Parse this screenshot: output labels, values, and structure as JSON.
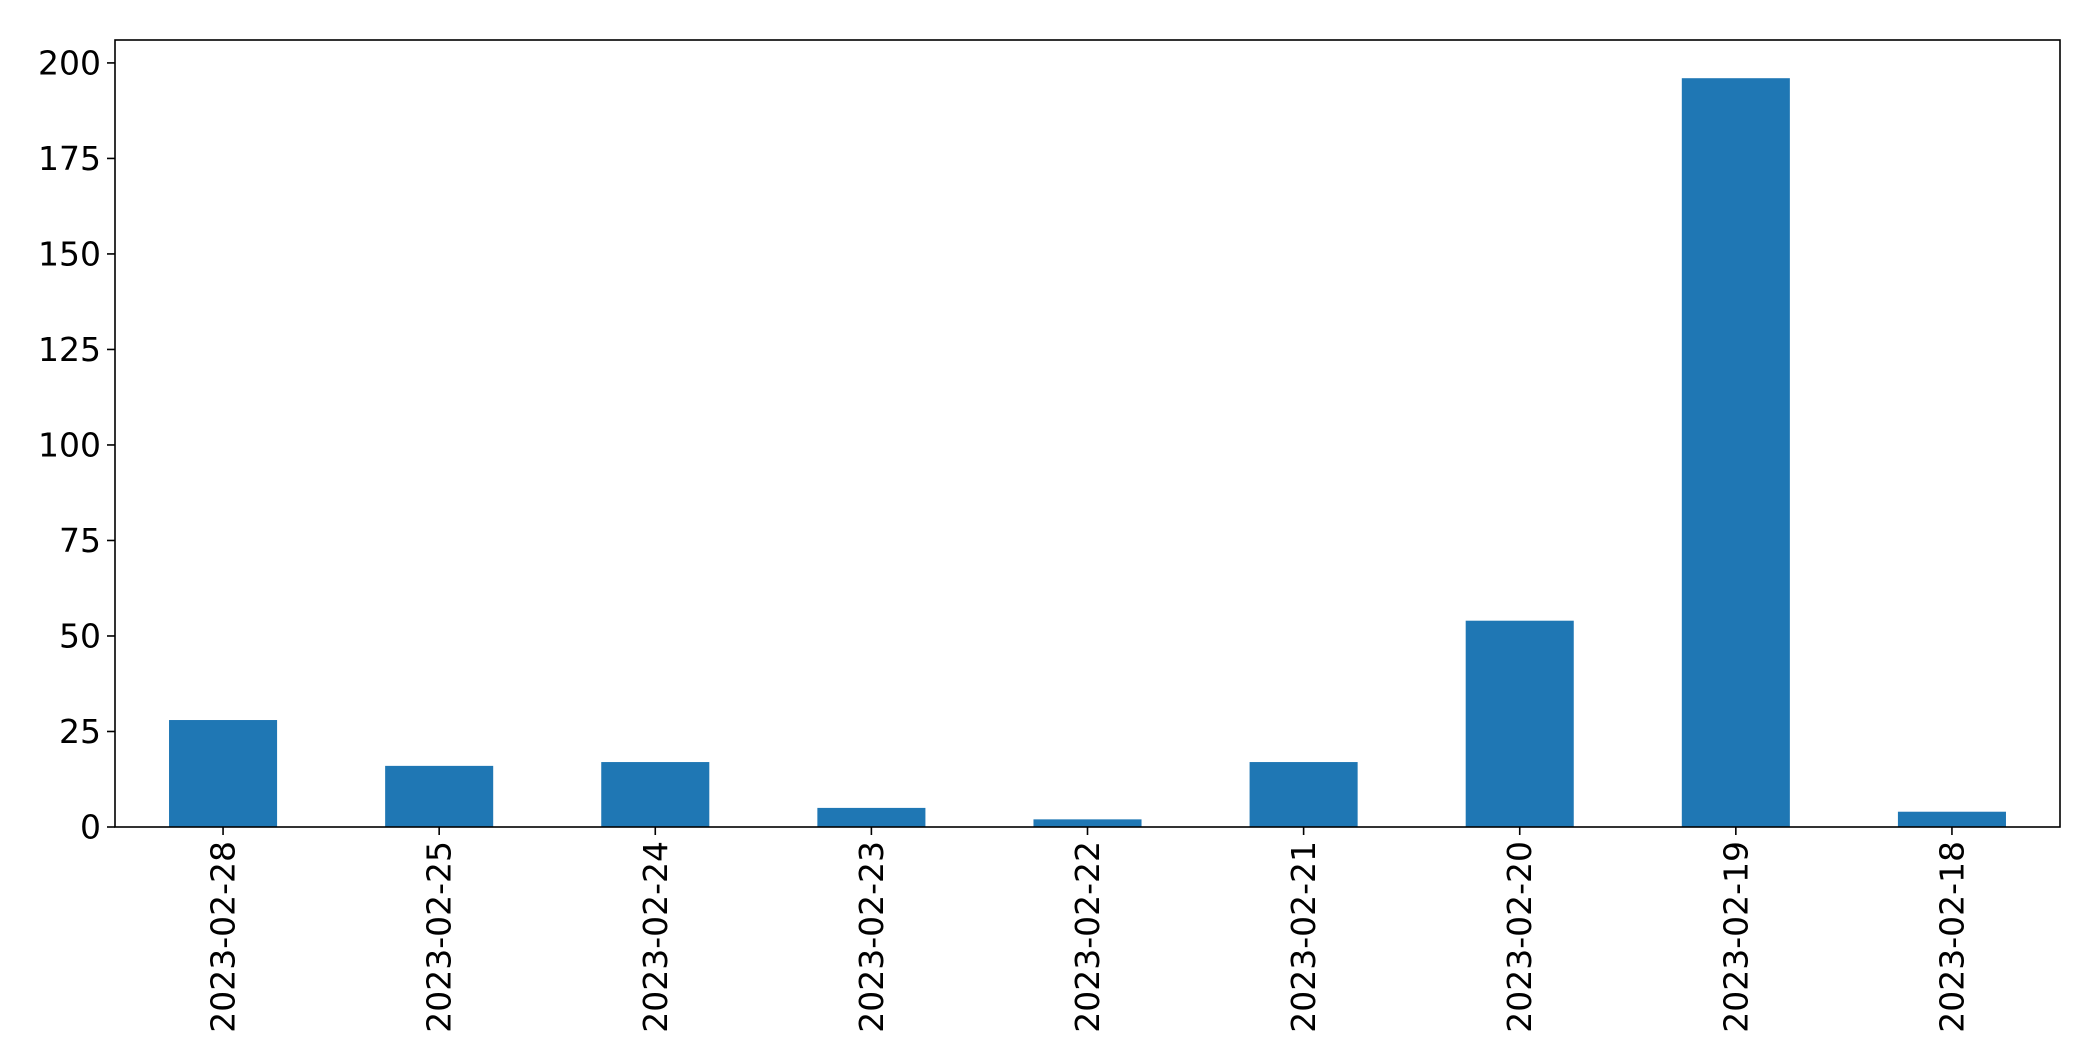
{
  "chart_data": {
    "type": "bar",
    "title": "",
    "xlabel": "",
    "ylabel": "",
    "categories": [
      "2023-02-28",
      "2023-02-25",
      "2023-02-24",
      "2023-02-23",
      "2023-02-22",
      "2023-02-21",
      "2023-02-20",
      "2023-02-19",
      "2023-02-18"
    ],
    "values": [
      28,
      16,
      17,
      5,
      2,
      17,
      54,
      196,
      4
    ],
    "ylim": [
      0,
      206
    ],
    "yticks": [
      0,
      25,
      50,
      75,
      100,
      125,
      150,
      175,
      200
    ],
    "grid": false,
    "legend": "none",
    "bar_color": "#1f77b4",
    "x_tick_rotation": "vertical"
  }
}
